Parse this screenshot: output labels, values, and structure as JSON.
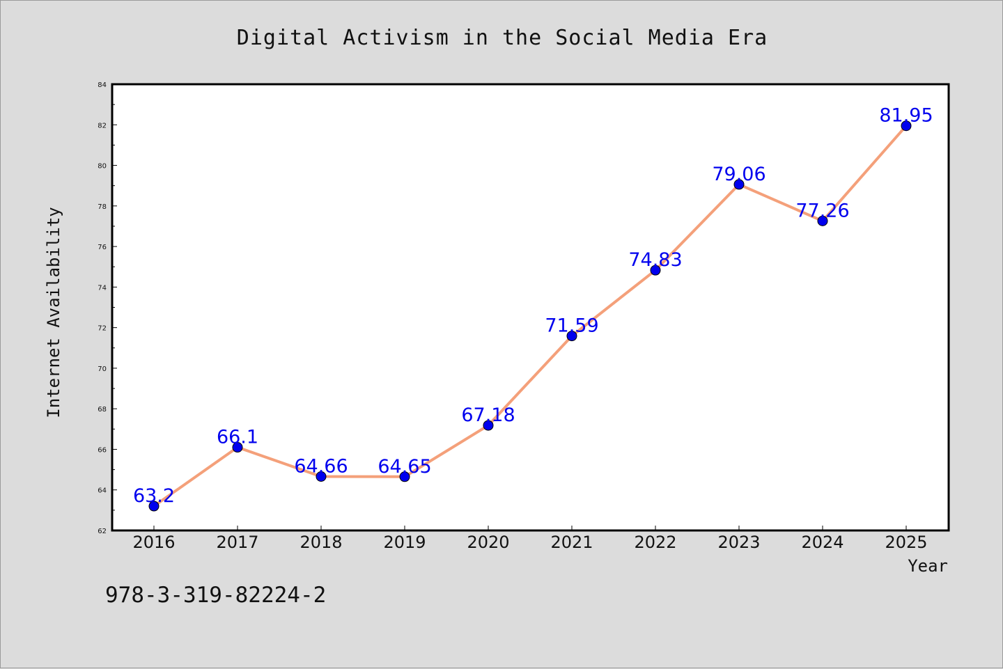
{
  "chart_data": {
    "type": "line",
    "title": "Digital Activism in the Social Media Era",
    "xlabel": "Year",
    "ylabel": "Internet Availability",
    "categories": [
      "2016",
      "2017",
      "2018",
      "2019",
      "2020",
      "2021",
      "2022",
      "2023",
      "2024",
      "2025"
    ],
    "series": [
      {
        "values": [
          63.2,
          66.1,
          64.66,
          64.65,
          67.18,
          71.59,
          74.83,
          79.06,
          77.26,
          81.95
        ],
        "data_labels": [
          "63.2",
          "66.1",
          "64.66",
          "64.65",
          "67.18",
          "71.59",
          "74.83",
          "79.06",
          "77.26",
          "81.95"
        ]
      }
    ],
    "ylim": [
      62,
      84
    ],
    "yticks": [
      62,
      64,
      66,
      68,
      70,
      72,
      74,
      76,
      78,
      80,
      82,
      84
    ],
    "grid": false,
    "legend": "none",
    "colors": {
      "line": "#f4a07a",
      "marker": "#0000ee",
      "data_label": "#0000ee",
      "background": "#dcdcdc",
      "plot_background": "#ffffff"
    }
  },
  "footnote": "978-3-319-82224-2"
}
